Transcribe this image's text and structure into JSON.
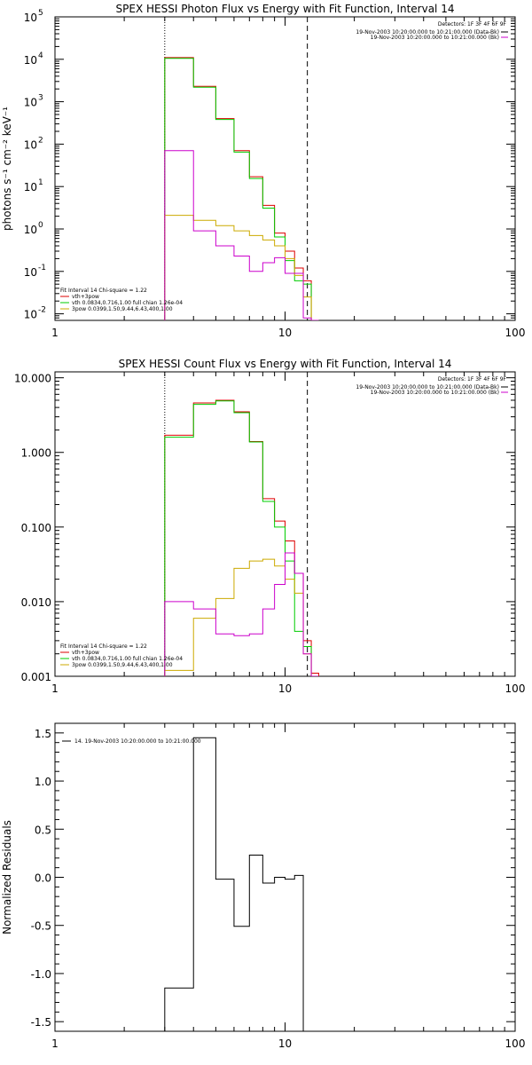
{
  "chart_data": [
    {
      "type": "step-line",
      "title": "SPEX HESSI Photon Flux vs Energy with Fit Function, Interval 14",
      "xlabel": "",
      "ylabel": "photons s⁻¹ cm⁻² keV⁻¹",
      "xscale": "log",
      "yscale": "log",
      "xlim": [
        1,
        100
      ],
      "ylim": [
        0.007,
        100000
      ],
      "x_ticks": [
        {
          "value": 1,
          "label": "1"
        },
        {
          "value": 10,
          "label": "10"
        },
        {
          "value": 100,
          "label": "100"
        }
      ],
      "y_ticks": [
        {
          "value": 0.01,
          "base": "10",
          "exp": "-2"
        },
        {
          "value": 0.1,
          "base": "10",
          "exp": "-1"
        },
        {
          "value": 1,
          "base": "10",
          "exp": "0"
        },
        {
          "value": 10,
          "base": "10",
          "exp": "1"
        },
        {
          "value": 100,
          "base": "10",
          "exp": "2"
        },
        {
          "value": 1000,
          "base": "10",
          "exp": "3"
        },
        {
          "value": 10000,
          "base": "10",
          "exp": "4"
        },
        {
          "value": 100000,
          "base": "10",
          "exp": "5"
        }
      ],
      "vlines": [
        {
          "x": 3.0,
          "style": "dotted"
        },
        {
          "x": 12.5,
          "style": "dashed"
        }
      ],
      "top_legend": {
        "detectors": "Detectors: 1F 3F 4F 6F 9F",
        "entries": [
          {
            "text": "19-Nov-2003 10:20:00.000 to 10:21:00.000 (Data-Bk)",
            "color": "#000000"
          },
          {
            "text": "19-Nov-2003 10:20:00.000 to 10:21:00.000 (Bk)",
            "color": "#cc00cc"
          }
        ]
      },
      "fit_legend": {
        "header": "Fit Interval 14    Chi-square = 1.22",
        "entries": [
          {
            "text": "vth+3pow",
            "color": "#dd0000"
          },
          {
            "text": "vth 0.0834,0.716,1.00   full chian 1.26e-04",
            "color": "#00cc00"
          },
          {
            "text": "3pow 0.0399,1.50,9.44,6.43,400,1.00",
            "color": "#ccaa00"
          }
        ]
      },
      "edges": [
        3,
        4,
        5,
        6,
        7,
        8,
        9,
        10,
        11,
        12,
        13,
        14
      ],
      "series": [
        {
          "name": "vth+3pow",
          "color": "#dd0000",
          "values": [
            11000,
            2300,
            400,
            70,
            17,
            3.6,
            0.8,
            0.3,
            0.12,
            0.06,
            0.006
          ]
        },
        {
          "name": "vth",
          "color": "#00cc00",
          "values": [
            10500,
            2200,
            380,
            65,
            15.5,
            3.1,
            0.65,
            0.18,
            0.06,
            0.05,
            0.006
          ]
        },
        {
          "name": "3pow",
          "color": "#ccaa00",
          "values": [
            2.1,
            1.6,
            1.2,
            0.9,
            0.7,
            0.55,
            0.4,
            0.2,
            0.08,
            0.025,
            0.004
          ]
        },
        {
          "name": "Bk",
          "color": "#cc00cc",
          "values": [
            70,
            0.9,
            0.4,
            0.23,
            0.1,
            0.16,
            0.21,
            0.09,
            0.09,
            0.008,
            0.004
          ]
        }
      ]
    },
    {
      "type": "step-line",
      "title": "SPEX HESSI Count Flux vs Energy with Fit Function, Interval 14",
      "xlabel": "",
      "ylabel": "",
      "xscale": "log",
      "yscale": "log",
      "xlim": [
        1,
        100
      ],
      "ylim": [
        0.001,
        12
      ],
      "x_ticks": [
        {
          "value": 1,
          "label": "1"
        },
        {
          "value": 10,
          "label": "10"
        },
        {
          "value": 100,
          "label": "100"
        }
      ],
      "y_ticks": [
        {
          "value": 0.001,
          "label": "0.001"
        },
        {
          "value": 0.01,
          "label": "0.010"
        },
        {
          "value": 0.1,
          "label": "0.100"
        },
        {
          "value": 1,
          "label": "1.000"
        },
        {
          "value": 10,
          "label": "10.000"
        }
      ],
      "vlines": [
        {
          "x": 3.0,
          "style": "dotted"
        },
        {
          "x": 12.5,
          "style": "dashed"
        }
      ],
      "top_legend": {
        "detectors": "Detectors: 1F 3F 4F 6F 9F",
        "entries": [
          {
            "text": "19-Nov-2003 10:20:00.000 to 10:21:00.000 (Data-Bk)",
            "color": "#000000"
          },
          {
            "text": "19-Nov-2003 10:20:00.000 to 10:21:00.000 (Bk)",
            "color": "#cc00cc"
          }
        ]
      },
      "fit_legend": {
        "header": "Fit Interval 14    Chi-square = 1.22",
        "entries": [
          {
            "text": "vth+3pow",
            "color": "#dd0000"
          },
          {
            "text": "vth 0.0834,0.716,1.00   full chian 1.26e-04",
            "color": "#00cc00"
          },
          {
            "text": "3pow 0.0399,1.50,9.44,6.43,400,1.00",
            "color": "#ccaa00"
          }
        ]
      },
      "edges": [
        3,
        4,
        5,
        6,
        7,
        8,
        9,
        10,
        11,
        12,
        13,
        14
      ],
      "series": [
        {
          "name": "vth+3pow",
          "color": "#dd0000",
          "values": [
            1.7,
            4.6,
            5.0,
            3.5,
            1.4,
            0.24,
            0.12,
            0.065,
            0.024,
            0.003,
            0.0011
          ]
        },
        {
          "name": "vth",
          "color": "#00cc00",
          "values": [
            1.6,
            4.4,
            4.9,
            3.4,
            1.38,
            0.22,
            0.1,
            0.035,
            0.004,
            0.0025,
            0.001
          ]
        },
        {
          "name": "3pow",
          "color": "#ccaa00",
          "values": [
            0.0012,
            0.006,
            0.011,
            0.028,
            0.035,
            0.037,
            0.03,
            0.02,
            0.013,
            0.002,
            0.001
          ]
        },
        {
          "name": "Bk",
          "color": "#cc00cc",
          "values": [
            0.01,
            0.008,
            0.0037,
            0.0035,
            0.0037,
            0.008,
            0.017,
            0.045,
            0.024,
            0.002,
            0.001
          ]
        }
      ]
    },
    {
      "type": "step-line",
      "title": "",
      "xlabel": "",
      "ylabel": "Normalized Residuals",
      "xscale": "log",
      "yscale": "linear",
      "xlim": [
        1,
        100
      ],
      "ylim": [
        -1.6,
        1.6
      ],
      "x_ticks": [
        {
          "value": 1,
          "label": "1"
        },
        {
          "value": 10,
          "label": "10"
        },
        {
          "value": 100,
          "label": "100"
        }
      ],
      "y_ticks": [
        {
          "value": 1.5,
          "label": "1.5"
        },
        {
          "value": 1.0,
          "label": "1.0"
        },
        {
          "value": 0.5,
          "label": "0.5"
        },
        {
          "value": 0.0,
          "label": "0.0"
        },
        {
          "value": -0.5,
          "label": "-0.5"
        },
        {
          "value": -1.0,
          "label": "-1.0"
        },
        {
          "value": -1.5,
          "label": "-1.5"
        }
      ],
      "legend": {
        "entries": [
          {
            "text": "14. 19-Nov-2003 10:20:00.000 to 10:21:00.000",
            "color": "#000000"
          }
        ]
      },
      "edges": [
        3,
        4,
        5,
        6,
        7,
        8,
        9,
        10,
        11,
        12
      ],
      "series": [
        {
          "name": "14. 19-Nov-2003 10:20:00.000 to 10:21:00.000",
          "color": "#000000",
          "values": [
            -1.15,
            1.45,
            -0.02,
            -0.51,
            0.23,
            -0.06,
            0.0,
            -0.02,
            0.02
          ]
        }
      ]
    }
  ]
}
